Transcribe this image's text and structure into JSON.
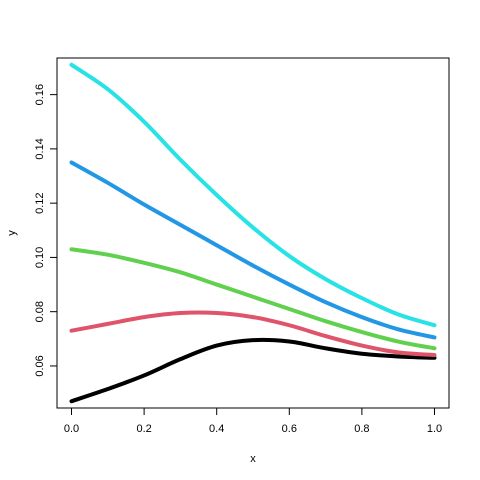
{
  "chart_data": {
    "type": "line",
    "title": "",
    "xlabel": "x",
    "ylabel": "y",
    "xlim": [
      -0.04,
      1.04
    ],
    "ylim": [
      0.0445,
      0.1735
    ],
    "grid": false,
    "legend": "none",
    "x_ticks": [
      0.0,
      0.2,
      0.4,
      0.6,
      0.8,
      1.0
    ],
    "x_tick_labels": [
      "0.0",
      "0.2",
      "0.4",
      "0.6",
      "0.8",
      "1.0"
    ],
    "y_ticks": [
      0.06,
      0.08,
      0.1,
      0.12,
      0.14,
      0.16
    ],
    "y_tick_labels": [
      "0.06",
      "0.08",
      "0.10",
      "0.12",
      "0.14",
      "0.16"
    ],
    "x": [
      0.0,
      0.1,
      0.2,
      0.3,
      0.4,
      0.5,
      0.6,
      0.7,
      0.8,
      0.9,
      1.0
    ],
    "series": [
      {
        "color": "#000000",
        "values": [
          0.047,
          0.0515,
          0.0565,
          0.0625,
          0.0675,
          0.0695,
          0.069,
          0.0665,
          0.0645,
          0.0635,
          0.063
        ]
      },
      {
        "color": "#DF536B",
        "values": [
          0.073,
          0.0755,
          0.078,
          0.0795,
          0.0795,
          0.078,
          0.075,
          0.071,
          0.0675,
          0.065,
          0.064
        ]
      },
      {
        "color": "#61D04F",
        "values": [
          0.103,
          0.101,
          0.098,
          0.0945,
          0.09,
          0.0855,
          0.081,
          0.0765,
          0.0725,
          0.069,
          0.0665
        ]
      },
      {
        "color": "#2297E6",
        "values": [
          0.135,
          0.1275,
          0.1195,
          0.112,
          0.1045,
          0.097,
          0.09,
          0.0835,
          0.078,
          0.0735,
          0.0705
        ]
      },
      {
        "color": "#28E2E5",
        "values": [
          0.171,
          0.162,
          0.15,
          0.136,
          0.123,
          0.111,
          0.1005,
          0.092,
          0.085,
          0.079,
          0.075
        ]
      }
    ]
  }
}
